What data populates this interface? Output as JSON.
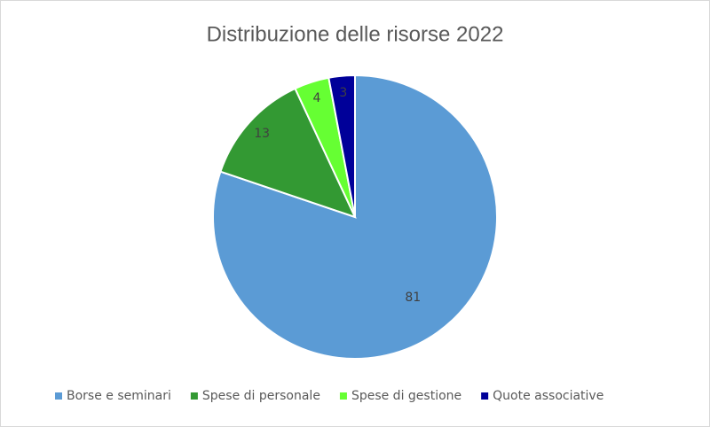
{
  "chart_data": {
    "type": "pie",
    "title": "Distribuzione delle risorse 2022",
    "categories": [
      "Borse e seminari",
      "Spese di personale",
      "Spese di gestione",
      "Quote associative"
    ],
    "values": [
      81,
      13,
      4,
      3
    ],
    "colors": [
      "#5b9bd5",
      "#339933",
      "#66ff33",
      "#000099"
    ],
    "legend": "bottom"
  }
}
